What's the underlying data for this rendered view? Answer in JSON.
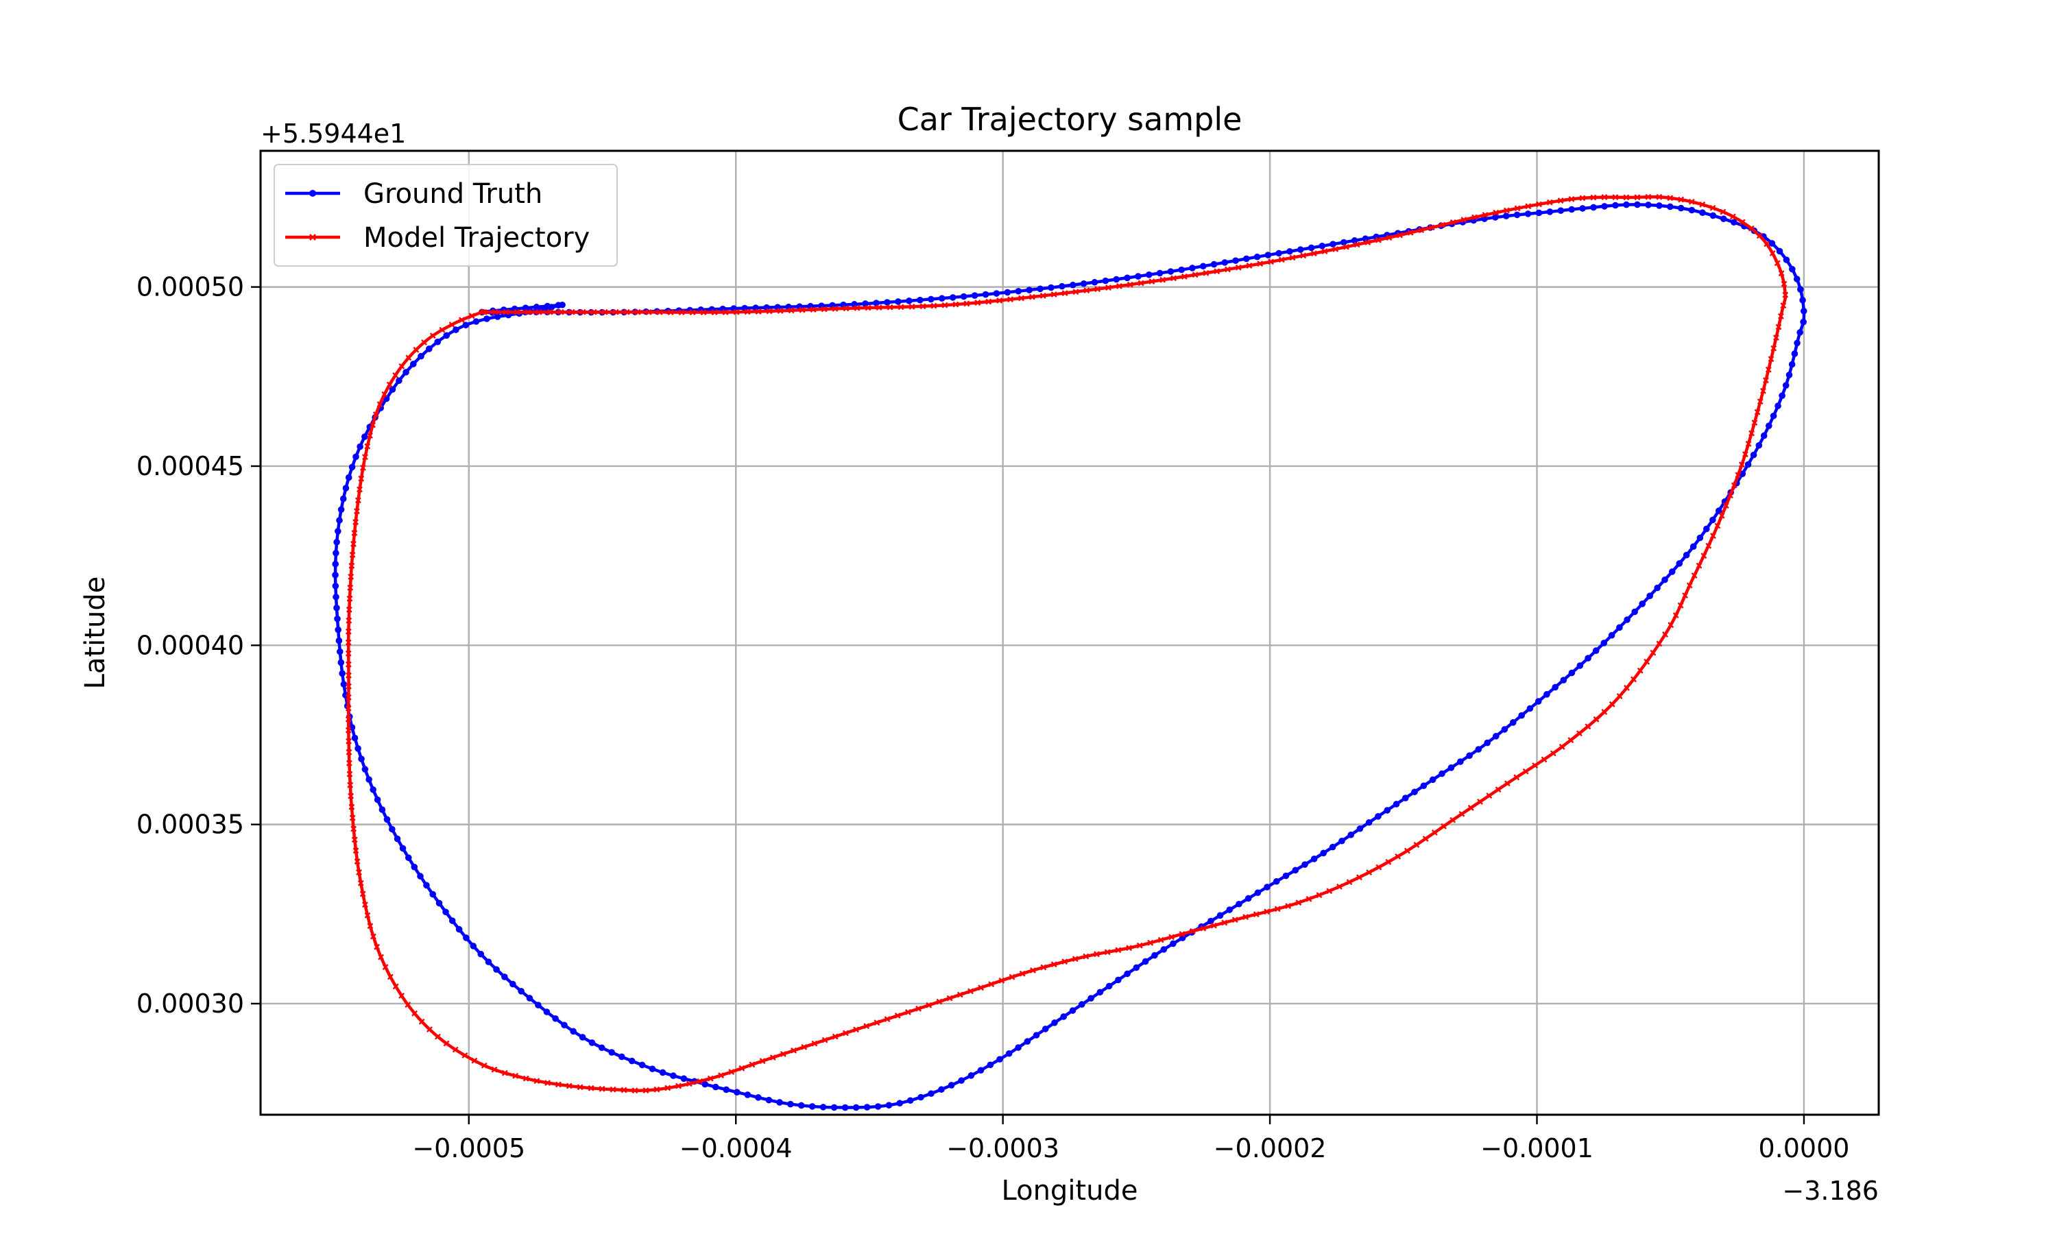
{
  "chart_data": {
    "type": "line",
    "title": "Car Trajectory sample",
    "xlabel": "Longitude",
    "ylabel": "Latitude",
    "x_offset_label": "−3.186",
    "y_offset_label": "+5.5944e1",
    "xlim": [
      -0.000578,
      2.8e-05
    ],
    "ylim": [
      0.000269,
      0.000538
    ],
    "grid": true,
    "legend_position": "upper left",
    "x_ticks": [
      {
        "value": -0.0005,
        "label": "−0.0005"
      },
      {
        "value": -0.0004,
        "label": "−0.0004"
      },
      {
        "value": -0.0003,
        "label": "−0.0003"
      },
      {
        "value": -0.0002,
        "label": "−0.0002"
      },
      {
        "value": -0.0001,
        "label": "−0.0001"
      },
      {
        "value": 0.0,
        "label": "0.0000"
      }
    ],
    "y_ticks": [
      {
        "value": 0.0003,
        "label": "0.00030"
      },
      {
        "value": 0.00035,
        "label": "0.00035"
      },
      {
        "value": 0.0004,
        "label": "0.00040"
      },
      {
        "value": 0.00045,
        "label": "0.00045"
      },
      {
        "value": 0.0005,
        "label": "0.00050"
      }
    ],
    "series": [
      {
        "name": "Ground Truth",
        "color": "#0000ff",
        "marker": "dot",
        "x": [
          -0.000465,
          -0.000478,
          -0.000494,
          -0.000505,
          -0.000516,
          -0.000526,
          -0.000534,
          -0.000541,
          -0.000546,
          -0.000549,
          -0.00055,
          -0.000549,
          -0.000547,
          -0.000543,
          -0.000536,
          -0.000526,
          -0.000513,
          -0.000497,
          -0.000478,
          -0.000456,
          -0.000432,
          -0.000414,
          -0.000398,
          -0.00038,
          -0.00036,
          -0.00034,
          -0.00032,
          -0.0003,
          -0.00028,
          -0.00026,
          -0.00024,
          -0.00022,
          -0.0002,
          -0.00018,
          -0.00016,
          -0.00014,
          -0.00012,
          -0.0001,
          -8e-05,
          -6e-05,
          -4.2e-05,
          -2.8e-05,
          -1.6e-05,
          -7e-06,
          -2e-06,
          0.0,
          -2e-06,
          -8e-06,
          -1.7e-05,
          -3e-05,
          -4.6e-05,
          -6.4e-05,
          -8.2e-05,
          -9.5e-05,
          -0.00012,
          -0.00016,
          -0.0002,
          -0.00024,
          -0.00028,
          -0.00032,
          -0.00036,
          -0.0004,
          -0.00044,
          -0.000475,
          -0.000495,
          -0.000465
        ],
        "y": [
          0.000495,
          0.000493,
          0.000491,
          0.000488,
          0.000482,
          0.000474,
          0.000465,
          0.000455,
          0.000444,
          0.000432,
          0.00042,
          0.000405,
          0.00039,
          0.000375,
          0.00036,
          0.000345,
          0.00033,
          0.000315,
          0.000302,
          0.00029,
          0.000282,
          0.000278,
          0.000275,
          0.000272,
          0.000271,
          0.000272,
          0.000277,
          0.000285,
          0.000295,
          0.000305,
          0.000315,
          0.000324,
          0.000333,
          0.000342,
          0.000352,
          0.000362,
          0.000372,
          0.000384,
          0.000397,
          0.000412,
          0.000427,
          0.000442,
          0.000457,
          0.000472,
          0.000486,
          0.000492,
          0.000501,
          0.000509,
          0.000515,
          0.000519,
          0.000522,
          0.000523,
          0.000522,
          0.000521,
          0.000519,
          0.000514,
          0.000509,
          0.000504,
          0.0005,
          0.000497,
          0.000495,
          0.000494,
          0.000493,
          0.000493,
          0.000493,
          0.000495
        ]
      },
      {
        "name": "Model Trajectory",
        "color": "#ff0000",
        "marker": "x",
        "x": [
          -0.000495,
          -0.000505,
          -0.000516,
          -0.000526,
          -0.000534,
          -0.000539,
          -0.000542,
          -0.000544,
          -0.000545,
          -0.000545,
          -0.000545,
          -0.000544,
          -0.000541,
          -0.000535,
          -0.000525,
          -0.000512,
          -0.000495,
          -0.000478,
          -0.000462,
          -0.000445,
          -0.00043,
          -0.00041,
          -0.00039,
          -0.00037,
          -0.00035,
          -0.00033,
          -0.00031,
          -0.00029,
          -0.00027,
          -0.00025,
          -0.00023,
          -0.00021,
          -0.00019,
          -0.00017,
          -0.00015,
          -0.00013,
          -0.00011,
          -9e-05,
          -7e-05,
          -5.2e-05,
          -4.2e-05,
          -3.2e-05,
          -2.3e-05,
          -1.6e-05,
          -1.1e-05,
          -8e-06,
          -7e-06,
          -9e-06,
          -1.5e-05,
          -2.5e-05,
          -3.8e-05,
          -5.2e-05,
          -6.5e-05,
          -7.8e-05,
          -9.2e-05,
          -0.00012,
          -0.00016,
          -0.0002,
          -0.00024,
          -0.00028,
          -0.00032,
          -0.00036,
          -0.0004,
          -0.00044,
          -0.000475,
          -0.000495
        ],
        "y": [
          0.000493,
          0.00049,
          0.000485,
          0.000477,
          0.000466,
          0.000452,
          0.000437,
          0.000421,
          0.000405,
          0.00039,
          0.000374,
          0.000356,
          0.000336,
          0.000317,
          0.000302,
          0.000291,
          0.000283,
          0.000279,
          0.000277,
          0.000276,
          0.000276,
          0.000279,
          0.000284,
          0.000289,
          0.000294,
          0.000299,
          0.000304,
          0.000309,
          0.000313,
          0.000316,
          0.00032,
          0.000324,
          0.000328,
          0.000334,
          0.000342,
          0.000352,
          0.000362,
          0.000372,
          0.000385,
          0.000403,
          0.000418,
          0.000434,
          0.000451,
          0.000469,
          0.000484,
          0.000494,
          0.000498,
          0.000505,
          0.000513,
          0.000519,
          0.000523,
          0.000525,
          0.000525,
          0.000525,
          0.000524,
          0.00052,
          0.000513,
          0.000507,
          0.000502,
          0.000498,
          0.000495,
          0.000494,
          0.000493,
          0.000493,
          0.000493,
          0.000493
        ]
      }
    ]
  }
}
